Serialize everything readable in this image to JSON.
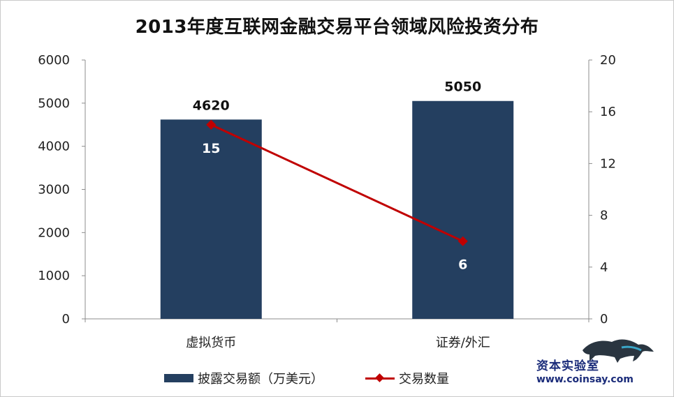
{
  "chart_data": {
    "type": "bar",
    "title": "2013年度互联网金融交易平台领域风险投资分布",
    "categories": [
      "虚拟货币",
      "证券/外汇"
    ],
    "series": [
      {
        "name": "披露交易额（万美元）",
        "type": "bar",
        "axis": "left",
        "values": [
          4620,
          5050
        ],
        "color": "#243f60"
      },
      {
        "name": "交易数量",
        "type": "line",
        "axis": "right",
        "values": [
          15,
          6
        ],
        "color": "#c00000"
      }
    ],
    "y_left": {
      "lim": [
        0,
        6000
      ],
      "ticks": [
        0,
        1000,
        2000,
        3000,
        4000,
        5000,
        6000
      ]
    },
    "y_right": {
      "lim": [
        0,
        20
      ],
      "ticks": [
        0,
        4,
        8,
        12,
        16,
        20
      ]
    },
    "grid": false,
    "legend_position": "bottom"
  },
  "watermark": {
    "name": "资本实验室",
    "url": "www.coinsay.com",
    "icon": "panther-logo-icon"
  }
}
